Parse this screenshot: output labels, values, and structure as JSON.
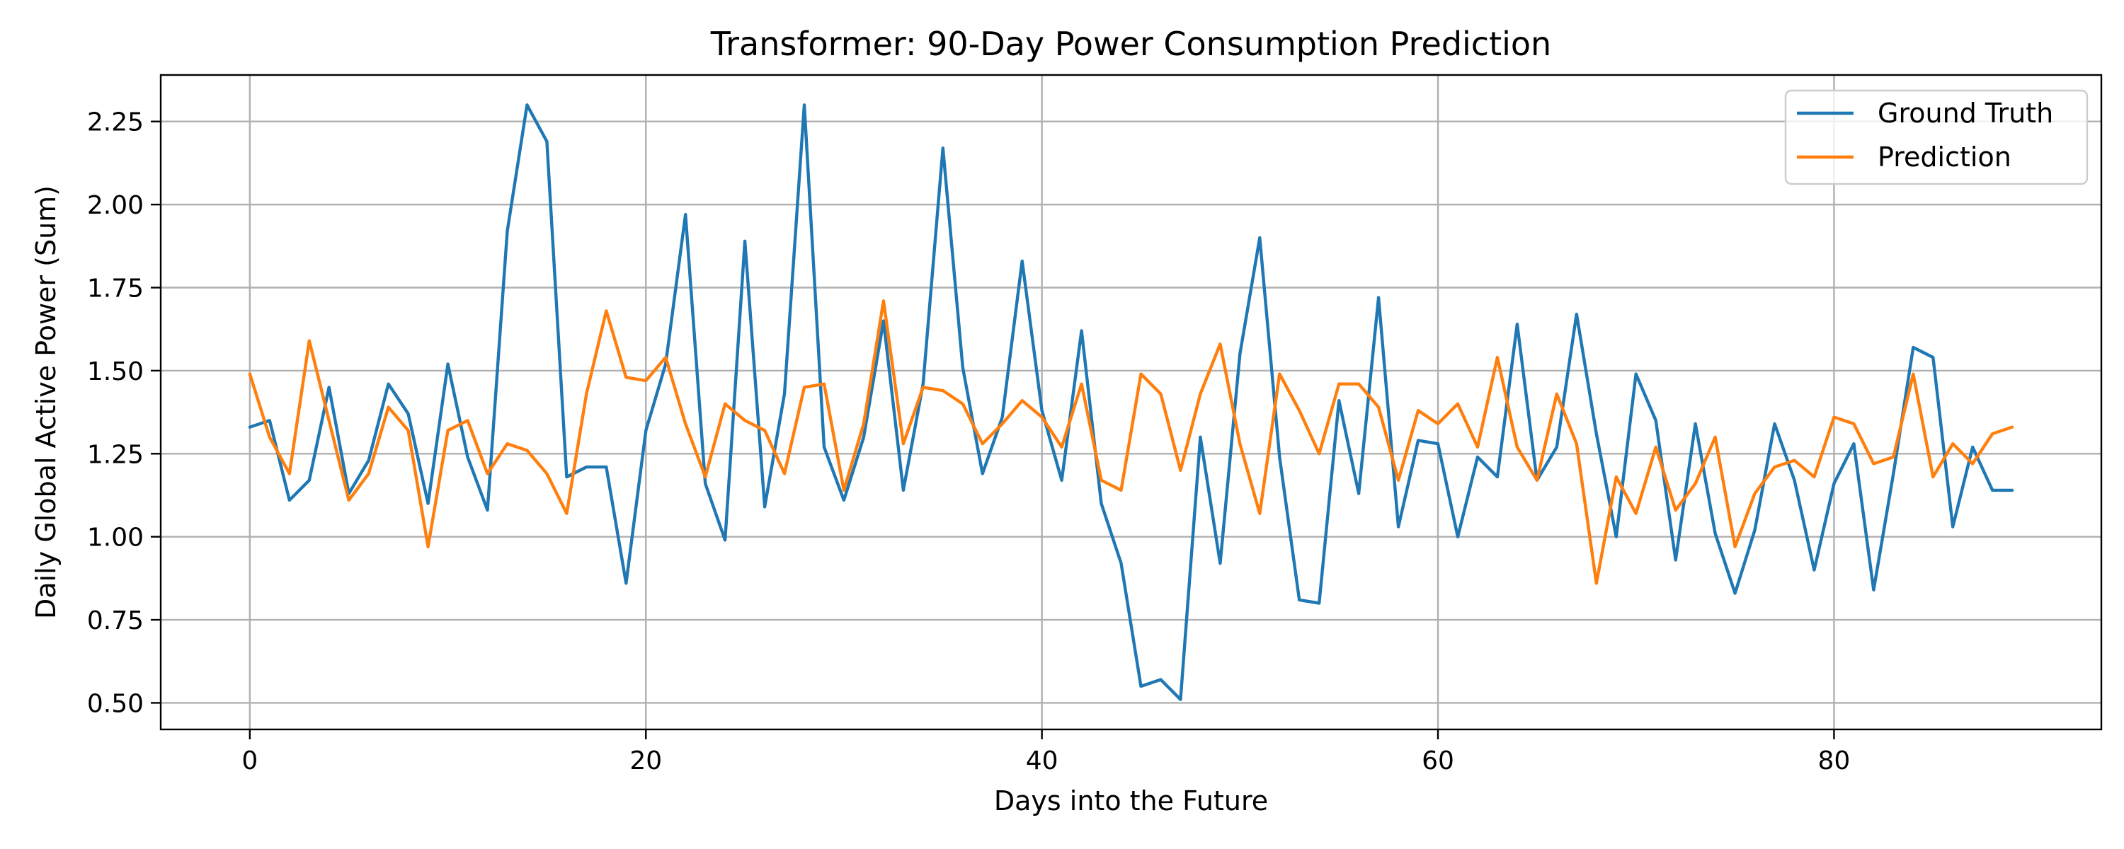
{
  "chart_data": {
    "type": "line",
    "title": "Transformer: 90-Day Power Consumption Prediction",
    "xlabel": "Days into the Future",
    "ylabel": "Daily Global Active Power (Sum)",
    "xlim": [
      -4.5,
      93.5
    ],
    "ylim": [
      0.42,
      2.39
    ],
    "xticks": [
      0,
      20,
      40,
      60,
      80
    ],
    "xtick_labels": [
      "0",
      "20",
      "40",
      "60",
      "80"
    ],
    "yticks": [
      0.5,
      0.75,
      1.0,
      1.25,
      1.5,
      1.75,
      2.0,
      2.25
    ],
    "ytick_labels": [
      "0.50",
      "0.75",
      "1.00",
      "1.25",
      "1.50",
      "1.75",
      "2.00",
      "2.25"
    ],
    "grid": true,
    "legend_position": "top-right",
    "x": [
      0,
      1,
      2,
      3,
      4,
      5,
      6,
      7,
      8,
      9,
      10,
      11,
      12,
      13,
      14,
      15,
      16,
      17,
      18,
      19,
      20,
      21,
      22,
      23,
      24,
      25,
      26,
      27,
      28,
      29,
      30,
      31,
      32,
      33,
      34,
      35,
      36,
      37,
      38,
      39,
      40,
      41,
      42,
      43,
      44,
      45,
      46,
      47,
      48,
      49,
      50,
      51,
      52,
      53,
      54,
      55,
      56,
      57,
      58,
      59,
      60,
      61,
      62,
      63,
      64,
      65,
      66,
      67,
      68,
      69,
      70,
      71,
      72,
      73,
      74,
      75,
      76,
      77,
      78,
      79,
      80,
      81,
      82,
      83,
      84,
      85,
      86,
      87,
      88,
      89
    ],
    "series": [
      {
        "name": "Ground Truth",
        "color": "#1f77b4",
        "values": [
          1.33,
          1.35,
          1.11,
          1.17,
          1.45,
          1.13,
          1.23,
          1.46,
          1.37,
          1.1,
          1.52,
          1.24,
          1.08,
          1.92,
          2.3,
          2.19,
          1.18,
          1.21,
          1.21,
          0.86,
          1.32,
          1.52,
          1.97,
          1.16,
          0.99,
          1.89,
          1.09,
          1.43,
          2.3,
          1.27,
          1.11,
          1.3,
          1.65,
          1.14,
          1.46,
          2.17,
          1.51,
          1.19,
          1.36,
          1.83,
          1.38,
          1.17,
          1.62,
          1.1,
          0.92,
          0.55,
          0.57,
          0.51,
          1.3,
          0.92,
          1.55,
          1.9,
          1.24,
          0.81,
          0.8,
          1.41,
          1.13,
          1.72,
          1.03,
          1.29,
          1.28,
          1.0,
          1.24,
          1.18,
          1.64,
          1.17,
          1.27,
          1.67,
          1.31,
          1.0,
          1.49,
          1.35,
          0.93,
          1.34,
          1.01,
          0.83,
          1.02,
          1.34,
          1.17,
          0.9,
          1.16,
          1.28,
          0.84,
          1.19,
          1.57,
          1.54,
          1.03,
          1.27,
          1.14,
          1.14
        ]
      },
      {
        "name": "Prediction",
        "color": "#ff7f0e",
        "values": [
          1.49,
          1.3,
          1.19,
          1.59,
          1.35,
          1.11,
          1.19,
          1.39,
          1.32,
          0.97,
          1.32,
          1.35,
          1.19,
          1.28,
          1.26,
          1.19,
          1.07,
          1.43,
          1.68,
          1.48,
          1.47,
          1.54,
          1.34,
          1.18,
          1.4,
          1.35,
          1.32,
          1.19,
          1.45,
          1.46,
          1.14,
          1.34,
          1.71,
          1.28,
          1.45,
          1.44,
          1.4,
          1.28,
          1.34,
          1.41,
          1.36,
          1.27,
          1.46,
          1.17,
          1.14,
          1.49,
          1.43,
          1.2,
          1.43,
          1.58,
          1.28,
          1.07,
          1.49,
          1.38,
          1.25,
          1.46,
          1.46,
          1.39,
          1.17,
          1.38,
          1.34,
          1.4,
          1.27,
          1.54,
          1.27,
          1.17,
          1.43,
          1.28,
          0.86,
          1.18,
          1.07,
          1.27,
          1.08,
          1.16,
          1.3,
          0.97,
          1.13,
          1.21,
          1.23,
          1.18,
          1.36,
          1.34,
          1.22,
          1.24,
          1.49,
          1.18,
          1.28,
          1.22,
          1.31,
          1.33
        ]
      }
    ]
  }
}
